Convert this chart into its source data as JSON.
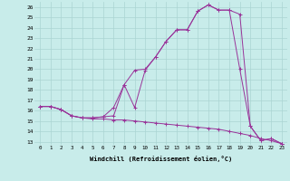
{
  "xlabel": "Windchill (Refroidissement éolien,°C)",
  "bg_color": "#c8ecea",
  "grid_color": "#aad4d2",
  "line_color": "#993399",
  "xlim": [
    -0.5,
    23.5
  ],
  "ylim": [
    12.7,
    26.5
  ],
  "series_max_x": [
    0,
    1,
    2,
    3,
    4,
    5,
    6,
    7,
    8,
    9,
    10,
    11,
    12,
    13,
    14,
    15,
    16,
    17,
    18,
    19,
    20,
    21,
    22,
    23
  ],
  "series_max_y": [
    16.4,
    16.4,
    16.1,
    15.5,
    15.3,
    15.3,
    15.4,
    16.3,
    18.5,
    19.9,
    20.0,
    21.2,
    22.7,
    23.8,
    23.8,
    25.6,
    26.2,
    25.7,
    25.7,
    25.3,
    14.5,
    13.1,
    13.3,
    12.8
  ],
  "series_min_x": [
    0,
    1,
    2,
    3,
    4,
    5,
    6,
    7,
    8,
    9,
    10,
    11,
    12,
    13,
    14,
    15,
    16,
    17,
    18,
    19,
    20,
    21,
    22,
    23
  ],
  "series_min_y": [
    16.4,
    16.4,
    16.1,
    15.5,
    15.3,
    15.2,
    15.2,
    15.1,
    15.1,
    15.0,
    14.9,
    14.8,
    14.7,
    14.6,
    14.5,
    14.4,
    14.3,
    14.2,
    14.0,
    13.8,
    13.6,
    13.3,
    13.1,
    12.8
  ],
  "series_mid_x": [
    0,
    1,
    2,
    3,
    4,
    5,
    6,
    7,
    8,
    9,
    10,
    11,
    12,
    13,
    14,
    15,
    16,
    17,
    18,
    19,
    20,
    21,
    22,
    23
  ],
  "series_mid_y": [
    16.4,
    16.4,
    16.1,
    15.5,
    15.3,
    15.3,
    15.4,
    15.5,
    18.5,
    16.3,
    19.9,
    21.2,
    22.7,
    23.8,
    23.8,
    25.6,
    26.2,
    25.7,
    25.7,
    20.0,
    14.5,
    13.1,
    13.3,
    12.8
  ],
  "xtick_labels": [
    "0",
    "1",
    "2",
    "3",
    "4",
    "5",
    "6",
    "7",
    "8",
    "9",
    "10",
    "11",
    "12",
    "13",
    "14",
    "15",
    "16",
    "17",
    "18",
    "19",
    "20",
    "21",
    "22",
    "23"
  ],
  "ytick_vals": [
    13,
    14,
    15,
    16,
    17,
    18,
    19,
    20,
    21,
    22,
    23,
    24,
    25,
    26
  ],
  "ytick_labels": [
    "13",
    "14",
    "15",
    "16",
    "17",
    "18",
    "19",
    "20",
    "21",
    "22",
    "23",
    "24",
    "25",
    "26"
  ]
}
